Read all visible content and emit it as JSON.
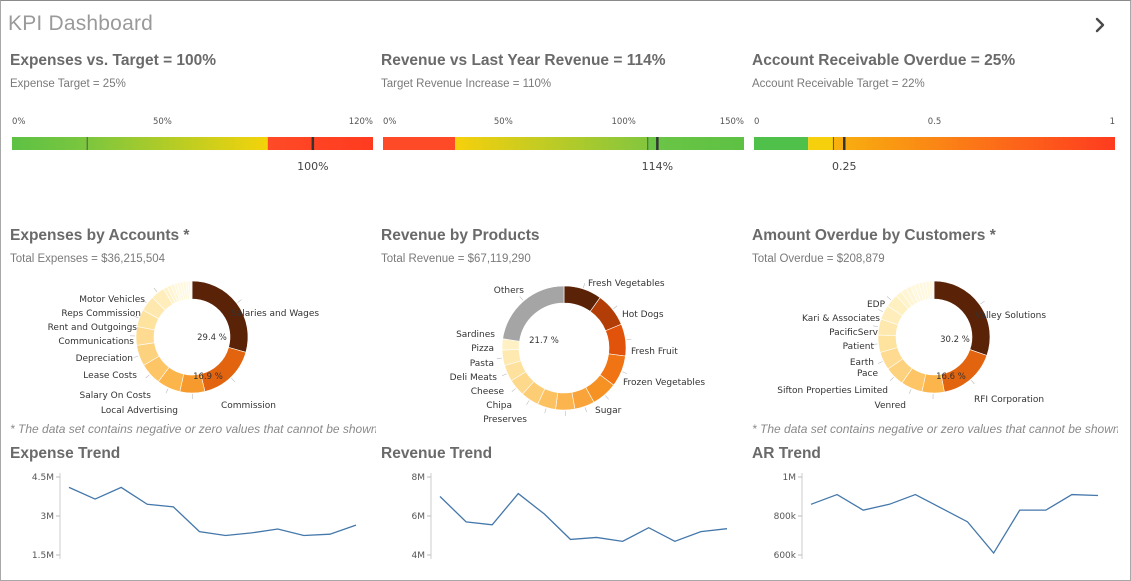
{
  "app": {
    "title": "KPI Dashboard",
    "next_icon": "chevron-right-icon"
  },
  "gauges": [
    {
      "title": "Expenses vs. Target = 100%",
      "subtitle": "Expense Target = 25%",
      "ticks": [
        "0%",
        "50%",
        "120%"
      ],
      "tick_values": [
        0,
        50,
        120
      ],
      "min": 0,
      "max": 120,
      "value": 100,
      "value_label": "100%",
      "target": 25,
      "bands": [
        {
          "from": 0,
          "to": 25,
          "colors": [
            "#5dc144",
            "#7cc63e"
          ]
        },
        {
          "from": 25,
          "to": 85,
          "colors": [
            "#7cc63e",
            "#f4d30a"
          ]
        },
        {
          "from": 85,
          "to": 120,
          "colors": [
            "#ff4a27",
            "#ff3b1f"
          ]
        }
      ]
    },
    {
      "title": "Revenue vs Last Year Revenue = 114%",
      "subtitle": "Target Revenue Increase = 110%",
      "ticks": [
        "0%",
        "50%",
        "100%",
        "150%"
      ],
      "tick_values": [
        0,
        50,
        100,
        150
      ],
      "min": 0,
      "max": 150,
      "value": 114,
      "value_label": "114%",
      "target": 110,
      "bands": [
        {
          "from": 0,
          "to": 30,
          "colors": [
            "#ff4a27",
            "#ff4a27"
          ]
        },
        {
          "from": 30,
          "to": 110,
          "colors": [
            "#f6d00c",
            "#83c63e"
          ]
        },
        {
          "from": 110,
          "to": 150,
          "colors": [
            "#6cc545",
            "#5dc144"
          ]
        }
      ]
    },
    {
      "title": "Account Receivable Overdue = 25%",
      "subtitle": "Account Receivable Target = 22%",
      "ticks": [
        "0",
        "0.5",
        "1"
      ],
      "tick_values": [
        0,
        0.5,
        1
      ],
      "min": 0,
      "max": 1,
      "value": 0.25,
      "value_label": "0.25",
      "target": 0.22,
      "bands": [
        {
          "from": 0,
          "to": 0.15,
          "colors": [
            "#4fc14a",
            "#4fc14a"
          ]
        },
        {
          "from": 0.15,
          "to": 0.22,
          "colors": [
            "#f6cf0d",
            "#f6cf0d"
          ]
        },
        {
          "from": 0.22,
          "to": 1,
          "colors": [
            "#f8b10f",
            "#ff3b1f"
          ]
        }
      ]
    }
  ],
  "donuts": [
    {
      "title": "Expenses by Accounts *",
      "subtitle": "Total Expenses = $36,215,504",
      "footnote": "* The data set contains negative or zero values that cannot be shown in this chart.",
      "center_labels": [
        "29.4 %",
        "16.9 %"
      ],
      "slices": [
        {
          "label": "Salaries and Wages",
          "value": 29.4,
          "color": "#5a2308"
        },
        {
          "label": "Commission",
          "value": 16.9,
          "color": "#e2640f"
        },
        {
          "label": "Local Advertising",
          "value": 7.2,
          "color": "#f69a2e"
        },
        {
          "label": "Salary On Costs",
          "value": 6.8,
          "color": "#fbb54a"
        },
        {
          "label": "Lease Costs",
          "value": 6.3,
          "color": "#fdc565"
        },
        {
          "label": "Depreciation",
          "value": 6.0,
          "color": "#fdd27e"
        },
        {
          "label": "Communications",
          "value": 5.4,
          "color": "#fedb90"
        },
        {
          "label": "Rent and Outgoings",
          "value": 5.0,
          "color": "#fee39f"
        },
        {
          "label": "Reps Commission",
          "value": 4.5,
          "color": "#fee8ad"
        },
        {
          "label": "Motor Vehicles",
          "value": 4.0,
          "color": "#ffedbb"
        },
        {
          "label": "",
          "value": 1.2,
          "color": "#fff2c8"
        },
        {
          "label": "",
          "value": 1.1,
          "color": "#fff4d0"
        },
        {
          "label": "",
          "value": 1.0,
          "color": "#fff6d8"
        },
        {
          "label": "",
          "value": 0.9,
          "color": "#fff8df"
        },
        {
          "label": "",
          "value": 0.9,
          "color": "#fff8df"
        },
        {
          "label": "",
          "value": 0.8,
          "color": "#fff8df"
        },
        {
          "label": "",
          "value": 0.8,
          "color": "#fff8df"
        },
        {
          "label": "",
          "value": 0.7,
          "color": "#fff8df"
        },
        {
          "label": "",
          "value": 0.6,
          "color": "#fff8df"
        },
        {
          "label": "",
          "value": 0.5,
          "color": "#fff8df"
        }
      ]
    },
    {
      "title": "Revenue by Products",
      "subtitle": "Total Revenue = $67,119,290",
      "footnote": "",
      "center_labels": [
        "21.7 %"
      ],
      "slices": [
        {
          "label": "Fresh Vegetables",
          "value": 9.5,
          "color": "#5a2308"
        },
        {
          "label": "Hot Dogs",
          "value": 8.5,
          "color": "#b33d06"
        },
        {
          "label": "Fresh Fruit",
          "value": 8.0,
          "color": "#e1520b"
        },
        {
          "label": "Frozen Vegetables",
          "value": 7.8,
          "color": "#f07414"
        },
        {
          "label": "Sugar",
          "value": 6.5,
          "color": "#f69224"
        },
        {
          "label": "Preserves",
          "value": 5.0,
          "color": "#f9a43a"
        },
        {
          "label": "Chipa",
          "value": 4.8,
          "color": "#fbb44e"
        },
        {
          "label": "Cheese",
          "value": 4.6,
          "color": "#fcc262"
        },
        {
          "label": "Deli Meats",
          "value": 4.5,
          "color": "#fdcd76"
        },
        {
          "label": "Pasta",
          "value": 4.3,
          "color": "#fed88b"
        },
        {
          "label": "Pizza",
          "value": 4.1,
          "color": "#fee19d"
        },
        {
          "label": "Sardines",
          "value": 3.9,
          "color": "#fee9b0"
        },
        {
          "label": "",
          "value": 2.8,
          "color": "#fff1c4"
        },
        {
          "label": "Others",
          "value": 21.7,
          "color": "#a5a5a5"
        }
      ]
    },
    {
      "title": "Amount Overdue by Customers *",
      "subtitle": "Total Overdue = $208,879",
      "footnote": "* The data set contains negative or zero values that cannot be shown in this chart.",
      "center_labels": [
        "30.2 %",
        "16.6 %"
      ],
      "slices": [
        {
          "label": "Valley Solutions",
          "value": 30.2,
          "color": "#5a2308"
        },
        {
          "label": "RFI Corporation",
          "value": 16.6,
          "color": "#e2640f"
        },
        {
          "label": "Venred",
          "value": 6.4,
          "color": "#fbb54a"
        },
        {
          "label": "Sifton Properties Limited",
          "value": 6.2,
          "color": "#fdc565"
        },
        {
          "label": "Pace",
          "value": 5.6,
          "color": "#fdd27e"
        },
        {
          "label": "Earth",
          "value": 5.2,
          "color": "#fedb90"
        },
        {
          "label": "Patient",
          "value": 5.0,
          "color": "#fee39f"
        },
        {
          "label": "PacificServ",
          "value": 4.6,
          "color": "#fee8ad"
        },
        {
          "label": "Kari & Associates",
          "value": 4.2,
          "color": "#ffedbb"
        },
        {
          "label": "EDP",
          "value": 3.8,
          "color": "#fff0c2"
        },
        {
          "label": "",
          "value": 1.8,
          "color": "#fff3cb"
        },
        {
          "label": "",
          "value": 1.6,
          "color": "#fff5d2"
        },
        {
          "label": "",
          "value": 1.4,
          "color": "#fff6d8"
        },
        {
          "label": "",
          "value": 1.3,
          "color": "#fff8df"
        },
        {
          "label": "",
          "value": 1.2,
          "color": "#fff8df"
        },
        {
          "label": "",
          "value": 1.1,
          "color": "#fff8df"
        },
        {
          "label": "",
          "value": 1.0,
          "color": "#fff8df"
        },
        {
          "label": "",
          "value": 0.9,
          "color": "#fff8df"
        },
        {
          "label": "",
          "value": 0.8,
          "color": "#fff8df"
        },
        {
          "label": "",
          "value": 0.6,
          "color": "#fff8df"
        }
      ]
    }
  ],
  "chart_data": [
    {
      "type": "line",
      "title": "Expense Trend",
      "y_ticks": [
        "4.5M",
        "3M",
        "1.5M"
      ],
      "y_tick_values": [
        4500000,
        3000000,
        1500000
      ],
      "ylim": [
        1500000,
        4500000
      ],
      "x": [
        1,
        2,
        3,
        4,
        5,
        6,
        7,
        8,
        9,
        10,
        11,
        12
      ],
      "values": [
        4100000,
        3650000,
        4100000,
        3450000,
        3350000,
        2400000,
        2250000,
        2350000,
        2500000,
        2250000,
        2300000,
        2650000
      ],
      "color": "#4477aa"
    },
    {
      "type": "line",
      "title": "Revenue Trend",
      "y_ticks": [
        "8M",
        "6M",
        "4M"
      ],
      "y_tick_values": [
        8000000,
        6000000,
        4000000
      ],
      "ylim": [
        4000000,
        8000000
      ],
      "x": [
        1,
        2,
        3,
        4,
        5,
        6,
        7,
        8,
        9,
        10,
        11,
        12
      ],
      "values": [
        7000000,
        5700000,
        5550000,
        7150000,
        6100000,
        4800000,
        4900000,
        4700000,
        5400000,
        4700000,
        5200000,
        5350000
      ],
      "color": "#4477aa"
    },
    {
      "type": "line",
      "title": "AR Trend",
      "y_ticks": [
        "1M",
        "800k",
        "600k"
      ],
      "y_tick_values": [
        1000000,
        800000,
        600000
      ],
      "ylim": [
        600000,
        1000000
      ],
      "x": [
        1,
        2,
        3,
        4,
        5,
        6,
        7,
        8,
        9,
        10,
        11,
        12
      ],
      "values": [
        860000,
        910000,
        830000,
        860000,
        910000,
        840000,
        770000,
        610000,
        830000,
        830000,
        910000,
        905000
      ],
      "color": "#4477aa"
    }
  ]
}
